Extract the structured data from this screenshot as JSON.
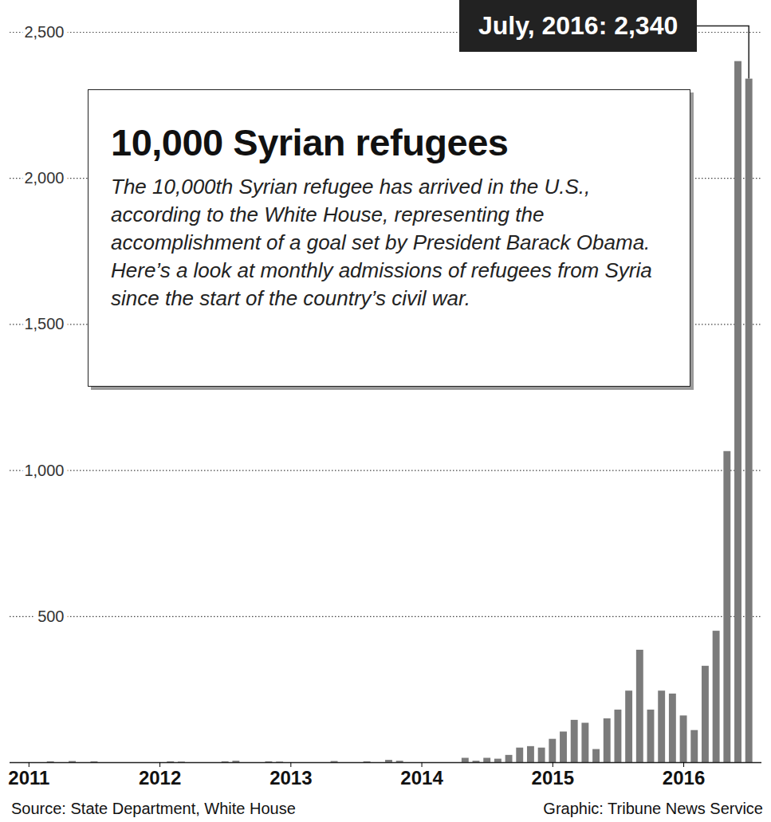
{
  "chart_data": {
    "type": "bar",
    "title": "10,000 Syrian refugees",
    "subtitle": "The 10,000th Syrian refugee has arrived in the U.S., according to the White House, representing the accomplishment of a goal set by President Barack Obama. Here’s a look at monthly admissions of refugees from Syria since the start of the country’s civil war.",
    "annotations": [
      "July, 2016: 2,340"
    ],
    "source": "Source: State Department, White House",
    "credit": "Graphic: Tribune News Service",
    "categories": [
      "2011",
      null,
      null,
      null,
      null,
      null,
      null,
      null,
      null,
      null,
      null,
      null,
      "2012",
      null,
      null,
      null,
      null,
      null,
      null,
      null,
      null,
      null,
      null,
      null,
      "2013",
      null,
      null,
      null,
      null,
      null,
      null,
      null,
      null,
      null,
      null,
      null,
      "2014",
      null,
      null,
      null,
      null,
      null,
      null,
      null,
      null,
      null,
      null,
      null,
      "2015",
      null,
      null,
      null,
      null,
      null,
      null,
      null,
      null,
      null,
      null,
      null,
      "2016",
      null,
      null,
      null,
      null,
      null,
      null
    ],
    "values": [
      0,
      0,
      3,
      0,
      4,
      0,
      3,
      0,
      0,
      0,
      0,
      0,
      0,
      3,
      2,
      0,
      0,
      0,
      3,
      5,
      0,
      0,
      3,
      2,
      0,
      0,
      0,
      0,
      4,
      0,
      0,
      3,
      0,
      8,
      5,
      0,
      0,
      0,
      0,
      0,
      15,
      5,
      15,
      12,
      25,
      50,
      55,
      50,
      80,
      105,
      145,
      135,
      45,
      150,
      180,
      245,
      385,
      180,
      245,
      235,
      160,
      110,
      330,
      450,
      1065,
      2400,
      2340
    ],
    "color": "#7b7b7b",
    "ylim": [
      0,
      2500
    ],
    "yticks": [
      500,
      {
        "value": 1000,
        "label": "1,000"
      },
      {
        "value": 1500,
        "label": "1,500"
      },
      {
        "value": 2000,
        "label": "2,000"
      },
      {
        "value": 2500,
        "label": "2,500"
      }
    ],
    "grid": true
  }
}
